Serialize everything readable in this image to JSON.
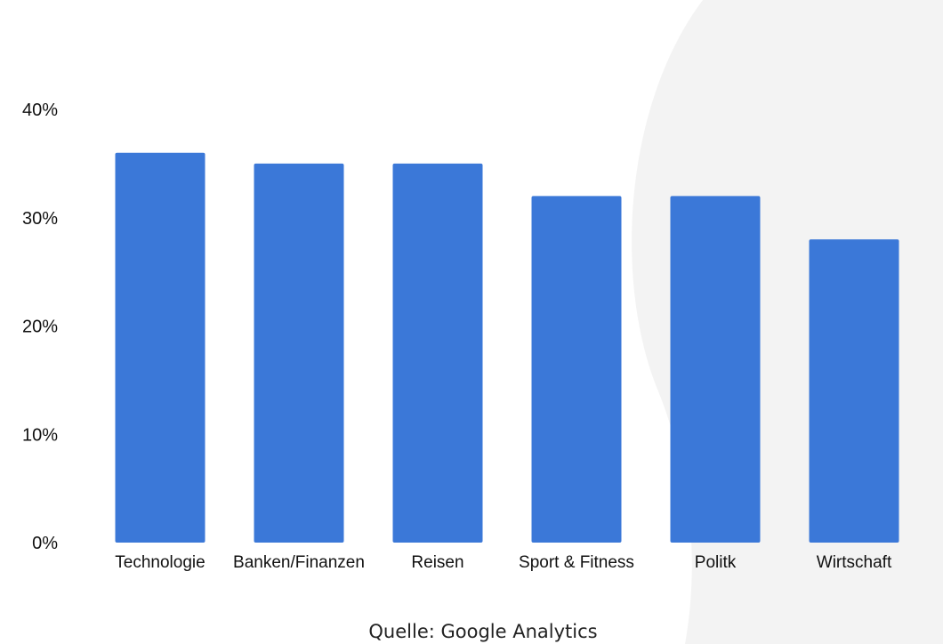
{
  "colors": {
    "bar": "#3b78d8",
    "background": "#ffffff",
    "decor_shape": "#f3f3f3",
    "text": "#111111"
  },
  "chart_data": {
    "type": "bar",
    "title": "",
    "xlabel": "",
    "ylabel": "",
    "categories": [
      "Technologie",
      "Banken/Finanzen",
      "Reisen",
      "Sport & Fitness",
      "Politk",
      "Wirtschaft"
    ],
    "values": [
      36,
      35,
      35,
      32,
      32,
      28
    ],
    "value_unit": "%",
    "ylim": [
      0,
      40
    ],
    "yticks": [
      0,
      10,
      20,
      30,
      40
    ],
    "ytick_labels": [
      "0%",
      "10%",
      "20%",
      "30%",
      "40%"
    ],
    "grid": false,
    "legend": "none"
  },
  "source": {
    "text": "Quelle: Google Analytics"
  }
}
